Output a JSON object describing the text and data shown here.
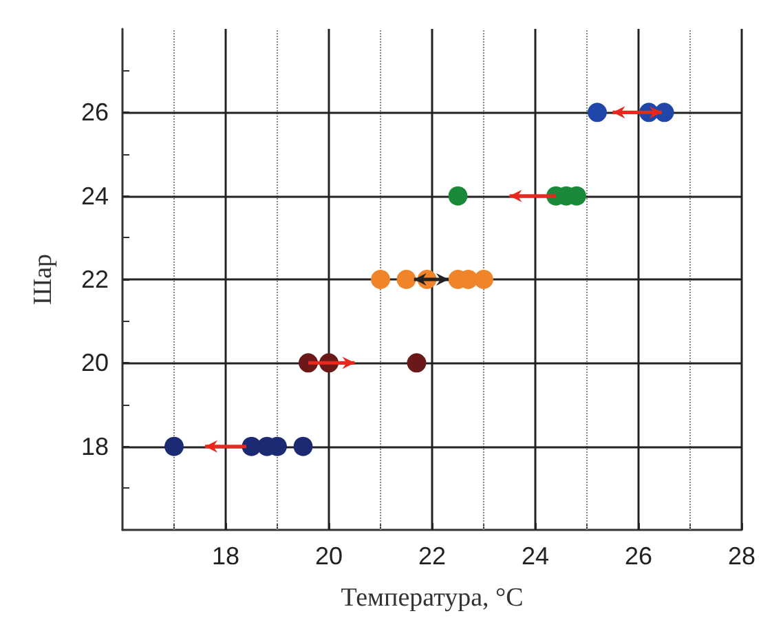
{
  "chart_data": {
    "type": "scatter",
    "xlabel": "Температура, °C",
    "ylabel": "Шар",
    "xlim": [
      16,
      28
    ],
    "ylim": [
      16,
      28
    ],
    "xticks": [
      {
        "value": 17,
        "label": null
      },
      18,
      {
        "value": 19,
        "label": null
      },
      20,
      {
        "value": 21,
        "label": null
      },
      22,
      {
        "value": 23,
        "label": null
      },
      24,
      {
        "value": 25,
        "label": null
      },
      26,
      {
        "value": 27,
        "label": null
      },
      28
    ],
    "yticks": [
      {
        "value": 17,
        "label": null
      },
      18,
      {
        "value": 19,
        "label": null
      },
      20,
      {
        "value": 21,
        "label": null
      },
      22,
      {
        "value": 23,
        "label": null
      },
      24,
      {
        "value": 25,
        "label": null
      },
      26,
      {
        "value": 27,
        "label": null
      }
    ],
    "grid": true,
    "marker": "circle",
    "series": [
      {
        "color": "#1b2a72",
        "x": [
          17.0,
          18.5,
          18.8,
          19.0,
          19.5
        ],
        "values": [
          18,
          18,
          18,
          18,
          18
        ]
      },
      {
        "color": "#6b1818",
        "x": [
          19.6,
          20.0,
          21.7
        ],
        "values": [
          20,
          20,
          20
        ]
      },
      {
        "color": "#f0842a",
        "x": [
          21.0,
          21.5,
          21.9,
          22.5,
          22.7,
          23.0
        ],
        "values": [
          22,
          22,
          22,
          22,
          22,
          22
        ]
      },
      {
        "color": "#1a8a3a",
        "x": [
          22.5,
          24.4,
          24.6,
          24.8
        ],
        "values": [
          24,
          24,
          24,
          24
        ]
      },
      {
        "color": "#1f46a8",
        "x": [
          25.2,
          26.2,
          26.5
        ],
        "values": [
          26,
          26,
          26
        ]
      }
    ]
  }
}
